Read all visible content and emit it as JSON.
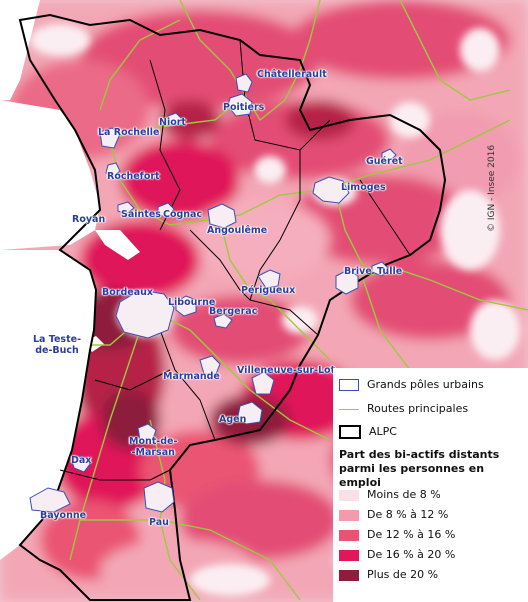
{
  "map": {
    "copyright": "© IGN - Insee 2016",
    "colors": {
      "water": "#ffffff",
      "background": "#f2c9d3",
      "boundary": "#000000",
      "roads": "#9dc93c",
      "urban_outline": "#3a4db3",
      "urban_fill": "#f6eef3"
    },
    "cities": [
      {
        "id": "chatellerault",
        "name": "Châtellerault"
      },
      {
        "id": "niort",
        "name": "Niort"
      },
      {
        "id": "poitiers",
        "name": "Poitiers"
      },
      {
        "id": "la-rochelle",
        "name": "La Rochelle"
      },
      {
        "id": "rochefort",
        "name": "Rochefort"
      },
      {
        "id": "gueret",
        "name": "Guéret"
      },
      {
        "id": "limoges",
        "name": "Limoges"
      },
      {
        "id": "royan",
        "name": "Royan"
      },
      {
        "id": "saintes",
        "name": "Saintes"
      },
      {
        "id": "cognac",
        "name": "Cognac"
      },
      {
        "id": "angouleme",
        "name": "Angoulême"
      },
      {
        "id": "brive",
        "name": "Brive"
      },
      {
        "id": "tulle",
        "name": "Tulle"
      },
      {
        "id": "bordeaux",
        "name": "Bordeaux"
      },
      {
        "id": "libourne",
        "name": "Libourne"
      },
      {
        "id": "perigueux",
        "name": "Périgueux"
      },
      {
        "id": "bergerac",
        "name": "Bergerac"
      },
      {
        "id": "la-teste",
        "name_line1": "La Teste-",
        "name_line2": "de-Buch"
      },
      {
        "id": "marmande",
        "name": "Marmande"
      },
      {
        "id": "villeneuve",
        "name": "Villeneuve-sur-Lot"
      },
      {
        "id": "agen",
        "name": "Agen"
      },
      {
        "id": "mont-de-marsan",
        "name_line1": "Mont-de-",
        "name_line2": "-Marsan"
      },
      {
        "id": "dax",
        "name": "Dax"
      },
      {
        "id": "bayonne",
        "name": "Bayonne"
      },
      {
        "id": "pau",
        "name": "Pau"
      }
    ]
  },
  "legend": {
    "urban_poles": "Grands pôles urbains",
    "roads": "Routes principales",
    "region": "ALPC",
    "title_line1": "Part des bi-actifs distants",
    "title_line2": "parmi les personnes en emploi",
    "classes": [
      {
        "label": "Moins de 8 %",
        "color": "#f8e1e6"
      },
      {
        "label": "De 8 % à 12 %",
        "color": "#f49aab"
      },
      {
        "label": "De 12 % à 16 %",
        "color": "#ea5473"
      },
      {
        "label": "De 16 % à 20 %",
        "color": "#e0185a"
      },
      {
        "label": "Plus de 20 %",
        "color": "#8e1c3c"
      }
    ]
  }
}
